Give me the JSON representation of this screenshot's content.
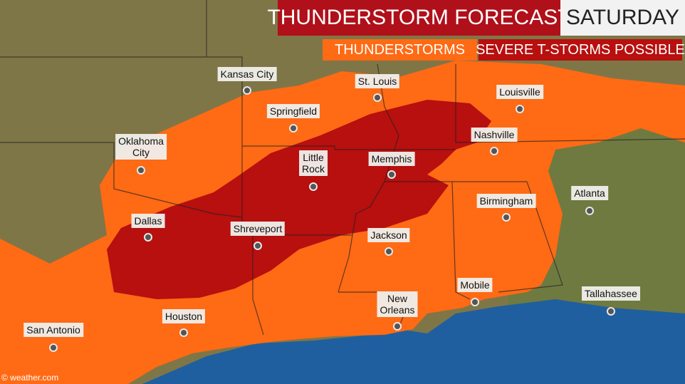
{
  "header": {
    "title": "THUNDERSTORM FORECAST",
    "day": "SATURDAY"
  },
  "legend": [
    "THUNDERSTORMS",
    "SEVERE T-STORMS POSSIBLE"
  ],
  "cities": [
    {
      "lines": [
        "Kansas City"
      ]
    },
    {
      "lines": [
        "St. Louis"
      ]
    },
    {
      "lines": [
        "Louisville"
      ]
    },
    {
      "lines": [
        "Springfield"
      ]
    },
    {
      "lines": [
        "Nashville"
      ]
    },
    {
      "lines": [
        "Oklahoma",
        "City"
      ]
    },
    {
      "lines": [
        "Little",
        "Rock"
      ]
    },
    {
      "lines": [
        "Memphis"
      ]
    },
    {
      "lines": [
        "Atlanta"
      ]
    },
    {
      "lines": [
        "Birmingham"
      ]
    },
    {
      "lines": [
        "Dallas"
      ]
    },
    {
      "lines": [
        "Shreveport"
      ]
    },
    {
      "lines": [
        "Jackson"
      ]
    },
    {
      "lines": [
        "Mobile"
      ]
    },
    {
      "lines": [
        "Tallahassee"
      ]
    },
    {
      "lines": [
        "New",
        "Orleans"
      ]
    },
    {
      "lines": [
        "Houston"
      ]
    },
    {
      "lines": [
        "San Antonio"
      ]
    }
  ],
  "credit": "© weather.com"
}
